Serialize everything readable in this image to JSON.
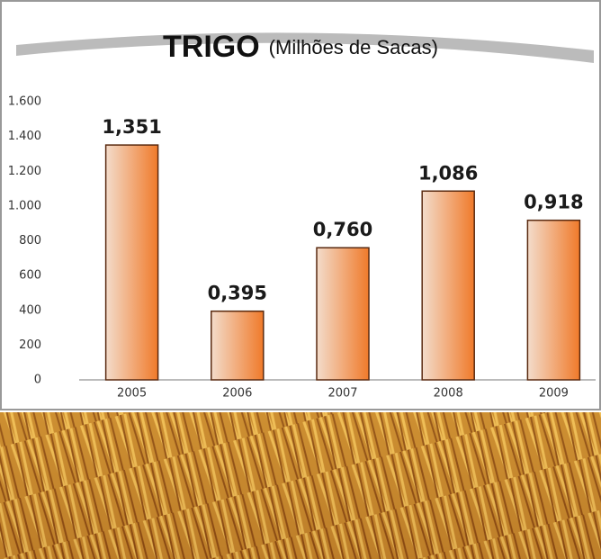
{
  "chart_data": {
    "type": "bar",
    "title": "TRIGO",
    "subtitle": "(Milhões de Sacas)",
    "categories": [
      "2005",
      "2006",
      "2007",
      "2008",
      "2009"
    ],
    "values": [
      1351,
      395,
      760,
      1086,
      918
    ],
    "value_labels": [
      "1,351",
      "0,395",
      "0,760",
      "1,086",
      "0,918"
    ],
    "color": "#f07a2a",
    "ylim": [
      0,
      1600
    ],
    "yticks": [
      0,
      200,
      400,
      600,
      800,
      {
        "value": 1000,
        "label": "1.000"
      },
      {
        "value": 1200,
        "label": "1.200"
      },
      {
        "value": 1400,
        "label": "1.400"
      },
      {
        "value": 1600,
        "label": "1.600"
      }
    ],
    "grid": false
  }
}
